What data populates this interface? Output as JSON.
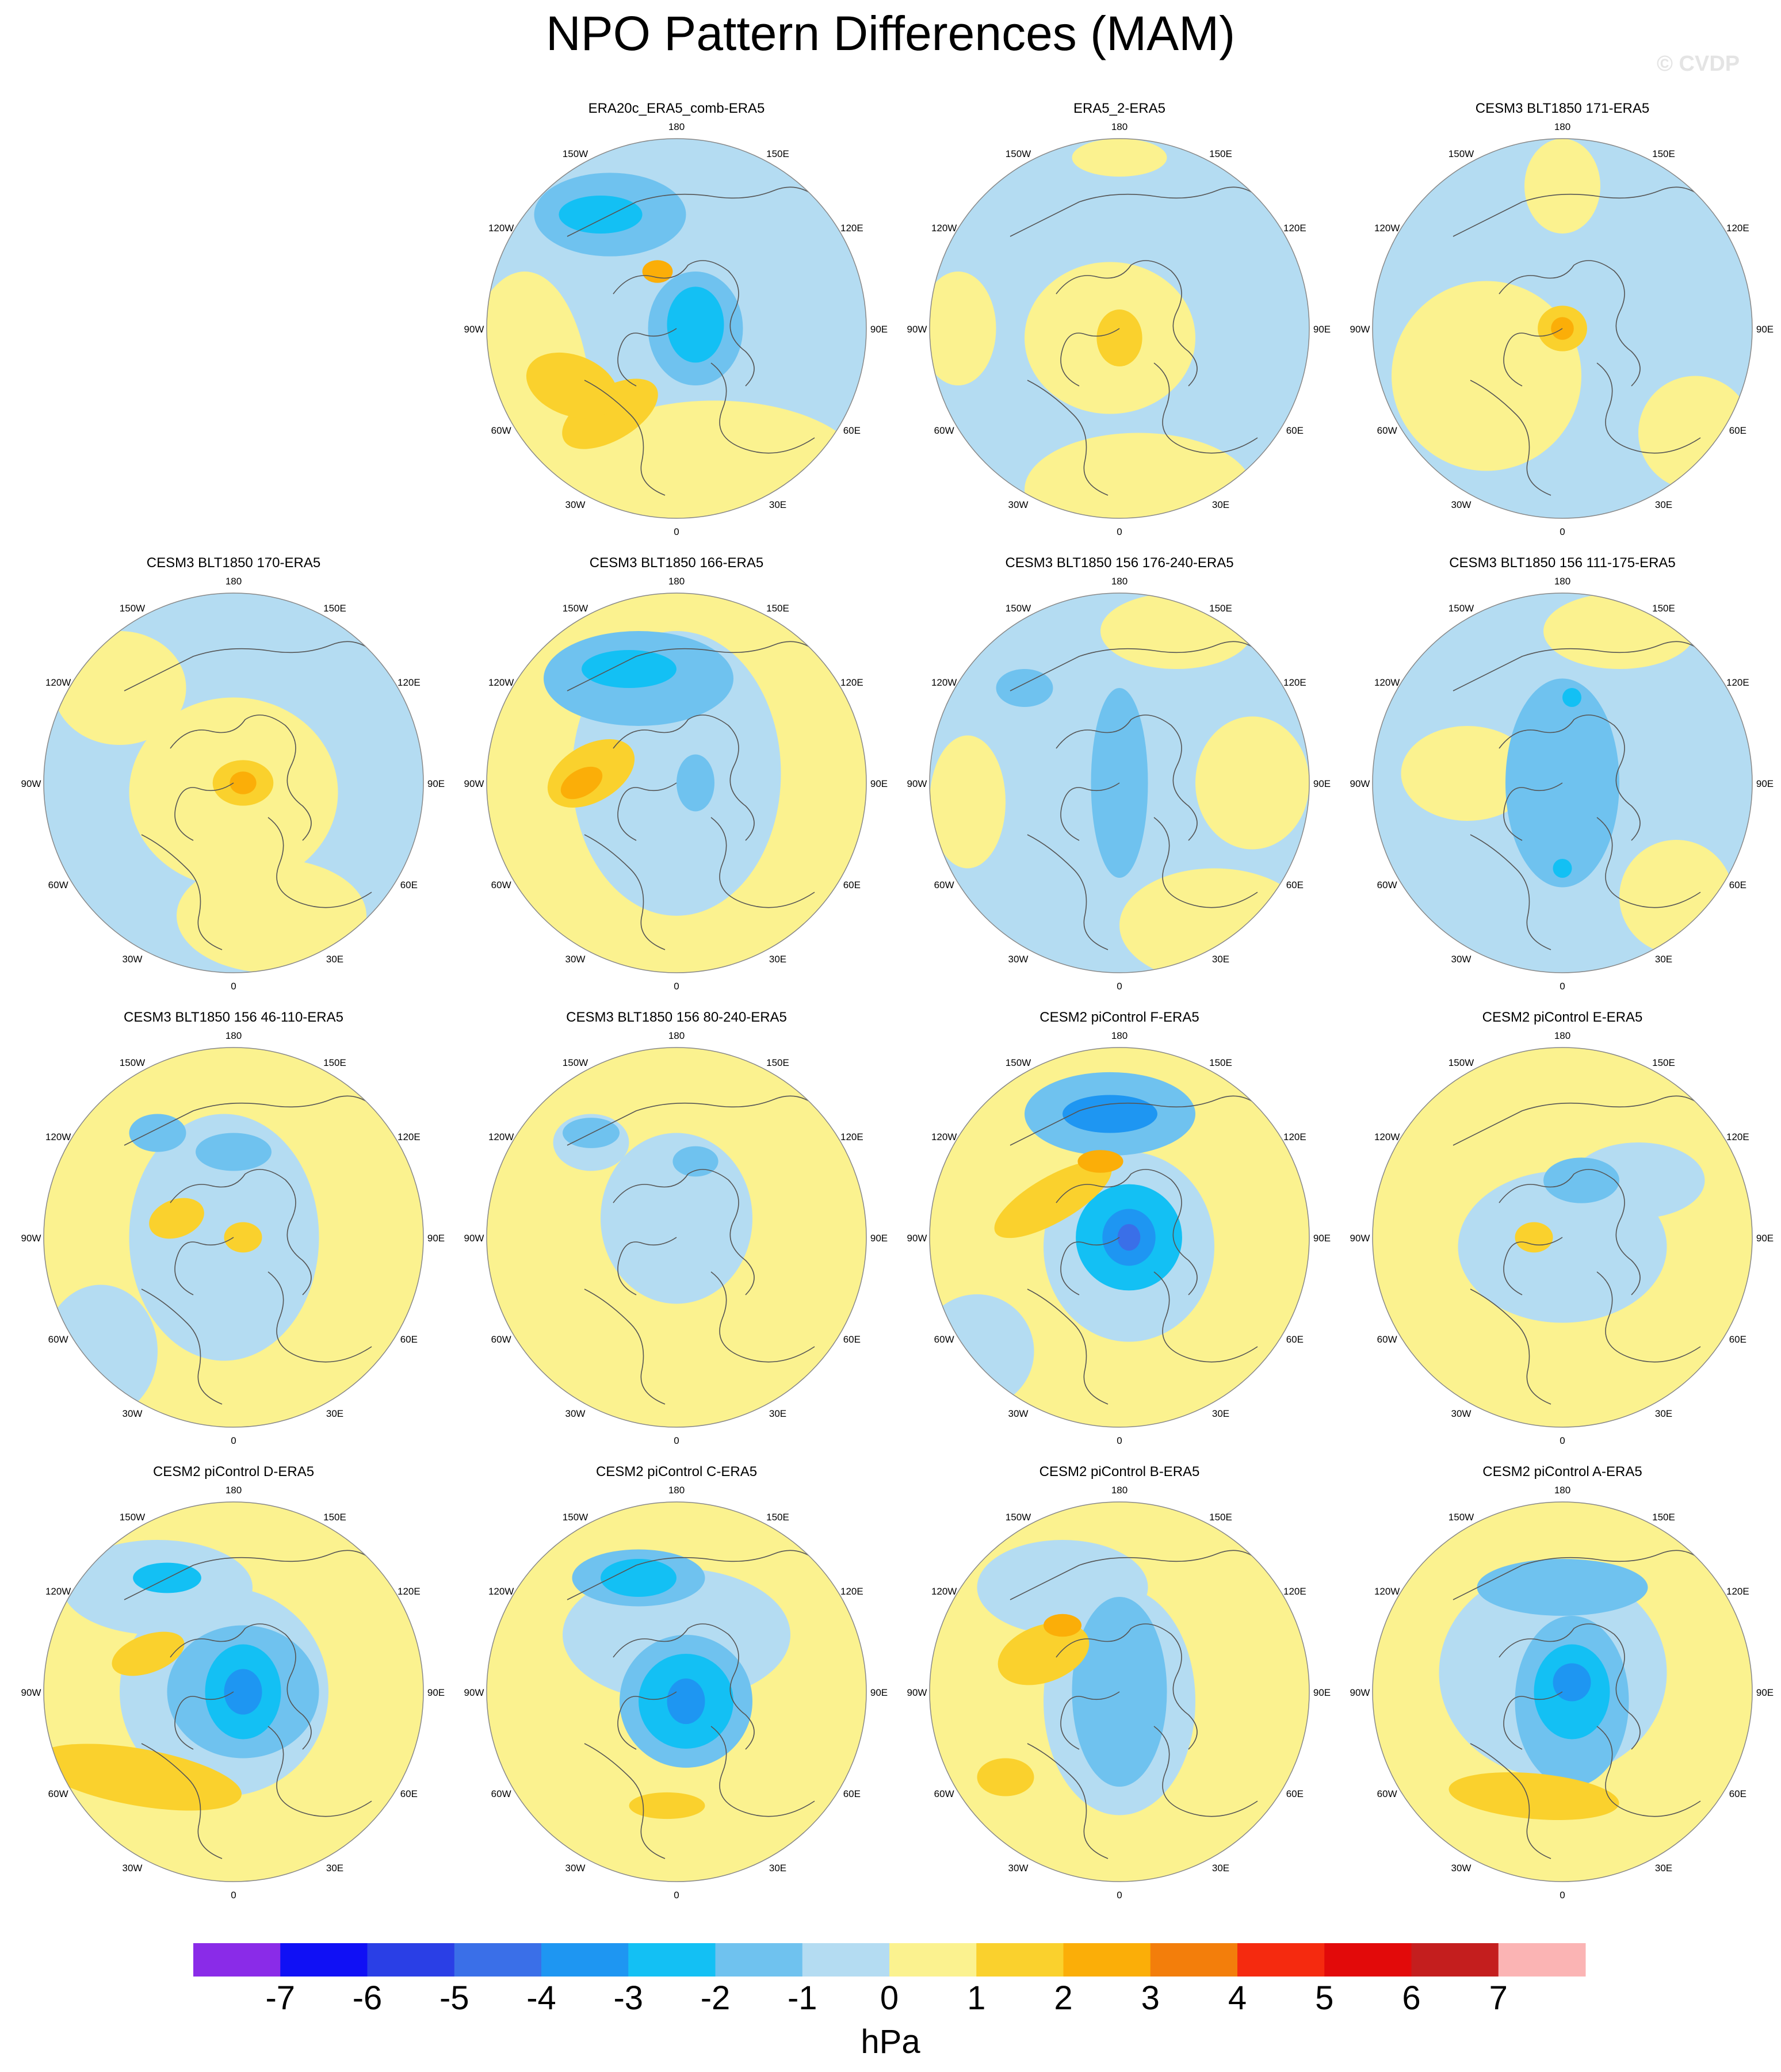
{
  "title": "NPO Pattern Differences (MAM)",
  "watermark": "© CVDP",
  "ring_labels": [
    "180",
    "150E",
    "120E",
    "90E",
    "60E",
    "30E",
    "0",
    "30W",
    "60W",
    "90W",
    "120W",
    "150W"
  ],
  "colors": {
    "blobs": {
      "Y": "#fbf28f",
      "O1": "#fad12d",
      "O2": "#fbae08",
      "O3": "#f37e0b",
      "B1": "#b4dcf2",
      "B2": "#6fc2ef",
      "B3": "#13c0f4",
      "B4": "#1e96f2",
      "B5": "#3a6fe8"
    },
    "coast": "#555555"
  },
  "colorbar": {
    "colors": [
      "#8a2be8",
      "#1010f5",
      "#2a3fe6",
      "#3a6fe8",
      "#1e96f2",
      "#13c0f4",
      "#6fc2ef",
      "#b4dcf2",
      "#fbf28f",
      "#fad12d",
      "#fbae08",
      "#f37e0b",
      "#f52a0f",
      "#e20a0a",
      "#c41e1e",
      "#fbb4b4"
    ],
    "labels": [
      "-7",
      "-6",
      "-5",
      "-4",
      "-3",
      "-2",
      "-1",
      "0",
      "1",
      "2",
      "3",
      "4",
      "5",
      "6",
      "7"
    ],
    "units": "hPa"
  },
  "panels": [
    {
      "title": "ERA20c_ERA5_comb-ERA5",
      "base": "B1",
      "blobs": [
        [
          "Y",
          -0.8,
          0.45,
          0.35,
          0.75,
          0
        ],
        [
          "Y",
          0.2,
          0.78,
          0.8,
          0.4,
          0
        ],
        [
          "O1",
          -0.35,
          0.45,
          0.28,
          0.14,
          -30
        ],
        [
          "O1",
          -0.55,
          0.3,
          0.25,
          0.16,
          20
        ],
        [
          "B2",
          -0.35,
          -0.6,
          0.4,
          0.22,
          0
        ],
        [
          "B3",
          -0.4,
          -0.6,
          0.22,
          0.1,
          0
        ],
        [
          "B2",
          0.1,
          0.0,
          0.25,
          0.3,
          0
        ],
        [
          "B3",
          0.1,
          -0.02,
          0.15,
          0.2,
          0
        ],
        [
          "O2",
          -0.1,
          -0.3,
          0.08,
          0.06,
          0
        ]
      ]
    },
    {
      "title": "ERA5_2-ERA5",
      "base": "B1",
      "blobs": [
        [
          "Y",
          -0.05,
          0.05,
          0.45,
          0.4,
          0
        ],
        [
          "Y",
          0.1,
          0.85,
          0.6,
          0.3,
          0
        ],
        [
          "Y",
          0.0,
          -0.9,
          0.25,
          0.1,
          0
        ],
        [
          "Y",
          -0.85,
          0.0,
          0.2,
          0.3,
          0
        ],
        [
          "O1",
          0.0,
          0.05,
          0.12,
          0.15,
          0
        ]
      ]
    },
    {
      "title": "CESM3 BLT1850 171-ERA5",
      "base": "B1",
      "blobs": [
        [
          "Y",
          -0.4,
          0.25,
          0.5,
          0.5,
          0
        ],
        [
          "Y",
          0.0,
          -0.75,
          0.2,
          0.25,
          0
        ],
        [
          "Y",
          0.7,
          0.55,
          0.3,
          0.3,
          0
        ],
        [
          "O1",
          0.0,
          0.0,
          0.13,
          0.12,
          0
        ],
        [
          "O2",
          0.0,
          0.0,
          0.06,
          0.06,
          0
        ]
      ]
    },
    {
      "title": "CESM3 BLT1850 170-ERA5",
      "base": "B1",
      "blobs": [
        [
          "Y",
          0.0,
          0.05,
          0.55,
          0.5,
          0
        ],
        [
          "Y",
          -0.6,
          -0.5,
          0.35,
          0.3,
          0
        ],
        [
          "Y",
          0.2,
          0.7,
          0.5,
          0.3,
          0
        ],
        [
          "O1",
          0.05,
          0.0,
          0.16,
          0.12,
          0
        ],
        [
          "O2",
          0.05,
          0.0,
          0.07,
          0.06,
          0
        ]
      ]
    },
    {
      "title": "CESM3 BLT1850 166-ERA5",
      "base": "Y",
      "blobs": [
        [
          "B1",
          0.0,
          -0.05,
          0.55,
          0.75,
          0
        ],
        [
          "B2",
          -0.2,
          -0.55,
          0.5,
          0.25,
          0
        ],
        [
          "B3",
          -0.25,
          -0.6,
          0.25,
          0.1,
          0
        ],
        [
          "O1",
          -0.45,
          -0.05,
          0.25,
          0.15,
          -30
        ],
        [
          "O2",
          -0.5,
          0.0,
          0.12,
          0.07,
          -30
        ],
        [
          "B2",
          0.1,
          0.0,
          0.1,
          0.15,
          0
        ]
      ]
    },
    {
      "title": "CESM3 BLT1850 156 176-240-ERA5",
      "base": "B1",
      "blobs": [
        [
          "Y",
          -0.8,
          0.1,
          0.2,
          0.35,
          0
        ],
        [
          "Y",
          0.5,
          0.75,
          0.5,
          0.3,
          0
        ],
        [
          "Y",
          0.7,
          0.0,
          0.3,
          0.35,
          0
        ],
        [
          "Y",
          0.3,
          -0.8,
          0.4,
          0.2,
          0
        ],
        [
          "B2",
          0.0,
          0.0,
          0.15,
          0.5,
          0
        ],
        [
          "B2",
          -0.5,
          -0.5,
          0.15,
          0.1,
          0
        ]
      ]
    },
    {
      "title": "CESM3 BLT1850 156 111-175-ERA5",
      "base": "B1",
      "blobs": [
        [
          "Y",
          -0.5,
          -0.05,
          0.35,
          0.25,
          0
        ],
        [
          "Y",
          0.3,
          -0.8,
          0.4,
          0.2,
          0
        ],
        [
          "Y",
          0.6,
          0.6,
          0.3,
          0.3,
          0
        ],
        [
          "B2",
          0.0,
          0.0,
          0.3,
          0.55,
          0
        ],
        [
          "B3",
          0.05,
          -0.45,
          0.05,
          0.05,
          0
        ],
        [
          "B3",
          0.0,
          0.45,
          0.05,
          0.05,
          0
        ]
      ]
    },
    {
      "title": "CESM3 BLT1850 156 46-110-ERA5",
      "base": "Y",
      "blobs": [
        [
          "B1",
          -0.05,
          0.0,
          0.5,
          0.65,
          0
        ],
        [
          "B1",
          -0.7,
          0.6,
          0.3,
          0.35,
          0
        ],
        [
          "B2",
          0.0,
          -0.45,
          0.2,
          0.1,
          0
        ],
        [
          "B2",
          -0.4,
          -0.55,
          0.15,
          0.1,
          0
        ],
        [
          "O1",
          -0.3,
          -0.1,
          0.15,
          0.1,
          -20
        ],
        [
          "O1",
          0.05,
          0.0,
          0.1,
          0.08,
          0
        ]
      ]
    },
    {
      "title": "CESM3 BLT1850 156 80-240-ERA5",
      "base": "Y",
      "blobs": [
        [
          "B1",
          0.0,
          -0.1,
          0.4,
          0.45,
          0
        ],
        [
          "B1",
          -0.45,
          -0.5,
          0.2,
          0.15,
          0
        ],
        [
          "B2",
          0.1,
          -0.4,
          0.12,
          0.08,
          0
        ],
        [
          "B2",
          -0.45,
          -0.55,
          0.15,
          0.08,
          0
        ]
      ]
    },
    {
      "title": "CESM2 piControl F-ERA5",
      "base": "Y",
      "blobs": [
        [
          "B1",
          0.05,
          0.05,
          0.45,
          0.5,
          0
        ],
        [
          "B1",
          -0.75,
          0.6,
          0.3,
          0.3,
          0
        ],
        [
          "B2",
          -0.05,
          -0.65,
          0.45,
          0.22,
          0
        ],
        [
          "B4",
          -0.05,
          -0.65,
          0.25,
          0.1,
          0
        ],
        [
          "B3",
          0.05,
          0.0,
          0.28,
          0.28,
          0
        ],
        [
          "B4",
          0.05,
          0.0,
          0.14,
          0.15,
          0
        ],
        [
          "B5",
          0.05,
          0.0,
          0.06,
          0.07,
          0
        ],
        [
          "O1",
          -0.35,
          -0.2,
          0.35,
          0.12,
          -30
        ],
        [
          "O2",
          -0.1,
          -0.4,
          0.12,
          0.06,
          0
        ]
      ]
    },
    {
      "title": "CESM2 piControl E-ERA5",
      "base": "Y",
      "blobs": [
        [
          "B1",
          0.0,
          0.05,
          0.55,
          0.4,
          0
        ],
        [
          "B1",
          0.4,
          -0.3,
          0.35,
          0.2,
          0
        ],
        [
          "B2",
          0.1,
          -0.3,
          0.2,
          0.12,
          0
        ],
        [
          "O1",
          -0.15,
          0.0,
          0.1,
          0.08,
          0
        ]
      ]
    },
    {
      "title": "CESM2 piControl D-ERA5",
      "base": "Y",
      "blobs": [
        [
          "B1",
          -0.05,
          0.0,
          0.55,
          0.55,
          0
        ],
        [
          "B1",
          -0.4,
          -0.55,
          0.5,
          0.25,
          0
        ],
        [
          "B2",
          0.05,
          0.0,
          0.4,
          0.35,
          0
        ],
        [
          "B3",
          0.05,
          0.0,
          0.2,
          0.25,
          0
        ],
        [
          "B4",
          0.05,
          0.0,
          0.1,
          0.12,
          0
        ],
        [
          "B3",
          -0.35,
          -0.6,
          0.18,
          0.08,
          0
        ],
        [
          "O1",
          -0.45,
          -0.2,
          0.2,
          0.1,
          -20
        ],
        [
          "O1",
          -0.5,
          0.45,
          0.55,
          0.15,
          10
        ]
      ]
    },
    {
      "title": "CESM2 piControl C-ERA5",
      "base": "Y",
      "blobs": [
        [
          "B1",
          0.0,
          -0.3,
          0.6,
          0.35,
          0
        ],
        [
          "B2",
          -0.2,
          -0.6,
          0.35,
          0.15,
          0
        ],
        [
          "B3",
          -0.2,
          -0.6,
          0.2,
          0.1,
          0
        ],
        [
          "B2",
          0.05,
          0.05,
          0.35,
          0.35,
          0
        ],
        [
          "B3",
          0.05,
          0.05,
          0.25,
          0.25,
          0
        ],
        [
          "B4",
          0.05,
          0.05,
          0.1,
          0.12,
          0
        ],
        [
          "O1",
          -0.05,
          0.6,
          0.2,
          0.07,
          0
        ]
      ]
    },
    {
      "title": "CESM2 piControl B-ERA5",
      "base": "Y",
      "blobs": [
        [
          "B1",
          -0.3,
          -0.55,
          0.45,
          0.25,
          0
        ],
        [
          "B1",
          0.0,
          0.05,
          0.4,
          0.6,
          0
        ],
        [
          "B2",
          0.0,
          0.0,
          0.25,
          0.5,
          0
        ],
        [
          "O1",
          -0.4,
          -0.2,
          0.25,
          0.15,
          -20
        ],
        [
          "O2",
          -0.3,
          -0.35,
          0.1,
          0.06,
          0
        ],
        [
          "O1",
          -0.6,
          0.45,
          0.15,
          0.1,
          0
        ]
      ]
    },
    {
      "title": "CESM2 piControl A-ERA5",
      "base": "Y",
      "blobs": [
        [
          "B1",
          -0.05,
          -0.1,
          0.6,
          0.55,
          0
        ],
        [
          "B2",
          0.0,
          -0.55,
          0.45,
          0.15,
          0
        ],
        [
          "B2",
          0.05,
          0.05,
          0.3,
          0.45,
          0
        ],
        [
          "B3",
          0.05,
          0.0,
          0.2,
          0.25,
          0
        ],
        [
          "B4",
          0.05,
          -0.05,
          0.1,
          0.1,
          0
        ],
        [
          "O1",
          -0.15,
          0.55,
          0.45,
          0.12,
          5
        ]
      ]
    }
  ]
}
